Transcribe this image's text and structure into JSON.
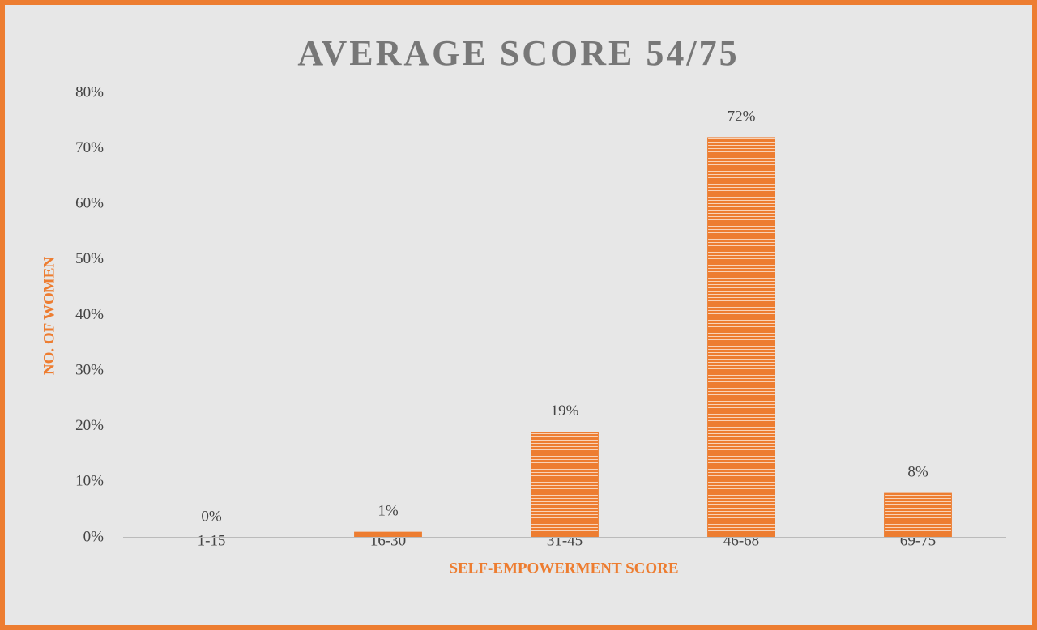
{
  "chart_data": {
    "type": "bar",
    "title": "AVERAGE SCORE 54/75",
    "x_label": "SELF-EMPOWERMENT SCORE",
    "y_label": "NO. OF WOMEN",
    "categories": [
      "1-15",
      "16-30",
      "31-45",
      "46-68",
      "69-75"
    ],
    "values": [
      0,
      1,
      19,
      72,
      8
    ],
    "value_labels": [
      "0%",
      "1%",
      "19%",
      "72%",
      "8%"
    ],
    "color": "#ed7d31",
    "ylim": [
      0,
      80
    ],
    "yticks": [
      {
        "value": 0,
        "label": "0%"
      },
      {
        "value": 10,
        "label": "10%"
      },
      {
        "value": 20,
        "label": "20%"
      },
      {
        "value": 30,
        "label": "30%"
      },
      {
        "value": 40,
        "label": "40%"
      },
      {
        "value": 50,
        "label": "50%"
      },
      {
        "value": 60,
        "label": "60%"
      },
      {
        "value": 70,
        "label": "70%"
      },
      {
        "value": 80,
        "label": "80%"
      }
    ],
    "grid": false
  }
}
